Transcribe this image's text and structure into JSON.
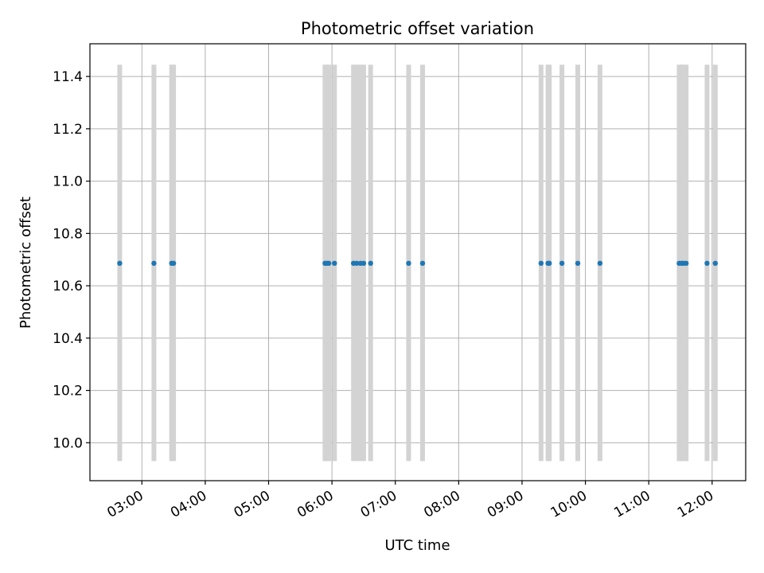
{
  "chart_data": {
    "type": "scatter",
    "title": "Photometric offset variation",
    "xlabel": "UTC time",
    "ylabel": "Photometric offset",
    "x_unit": "hours (UTC)",
    "xlim": [
      2.18,
      12.53
    ],
    "ylim": [
      9.855,
      11.525
    ],
    "x_ticks": [
      {
        "value": 3,
        "label": "03:00"
      },
      {
        "value": 4,
        "label": "04:00"
      },
      {
        "value": 5,
        "label": "05:00"
      },
      {
        "value": 6,
        "label": "06:00"
      },
      {
        "value": 7,
        "label": "07:00"
      },
      {
        "value": 8,
        "label": "08:00"
      },
      {
        "value": 9,
        "label": "09:00"
      },
      {
        "value": 10,
        "label": "10:00"
      },
      {
        "value": 11,
        "label": "11:00"
      },
      {
        "value": 12,
        "label": "12:00"
      }
    ],
    "y_ticks": [
      {
        "value": 10.0,
        "label": "10.0"
      },
      {
        "value": 10.2,
        "label": "10.2"
      },
      {
        "value": 10.4,
        "label": "10.4"
      },
      {
        "value": 10.6,
        "label": "10.6"
      },
      {
        "value": 10.8,
        "label": "10.8"
      },
      {
        "value": 11.0,
        "label": "11.0"
      },
      {
        "value": 11.2,
        "label": "11.2"
      },
      {
        "value": 11.4,
        "label": "11.4"
      }
    ],
    "grid": true,
    "point_color": "#1f77b4",
    "band_color": "#d3d3d3",
    "band_range": [
      9.93,
      11.445
    ],
    "points": [
      {
        "x": 2.65,
        "y": 10.686
      },
      {
        "x": 3.19,
        "y": 10.686
      },
      {
        "x": 3.47,
        "y": 10.686
      },
      {
        "x": 3.5,
        "y": 10.686
      },
      {
        "x": 5.89,
        "y": 10.686
      },
      {
        "x": 5.92,
        "y": 10.686
      },
      {
        "x": 5.95,
        "y": 10.686
      },
      {
        "x": 6.04,
        "y": 10.686
      },
      {
        "x": 6.34,
        "y": 10.686
      },
      {
        "x": 6.39,
        "y": 10.686
      },
      {
        "x": 6.45,
        "y": 10.686
      },
      {
        "x": 6.5,
        "y": 10.686
      },
      {
        "x": 6.61,
        "y": 10.686
      },
      {
        "x": 7.21,
        "y": 10.686
      },
      {
        "x": 7.43,
        "y": 10.686
      },
      {
        "x": 9.3,
        "y": 10.686
      },
      {
        "x": 9.41,
        "y": 10.686
      },
      {
        "x": 9.43,
        "y": 10.686
      },
      {
        "x": 9.63,
        "y": 10.686
      },
      {
        "x": 9.88,
        "y": 10.686
      },
      {
        "x": 10.23,
        "y": 10.686
      },
      {
        "x": 11.48,
        "y": 10.686
      },
      {
        "x": 11.52,
        "y": 10.686
      },
      {
        "x": 11.55,
        "y": 10.686
      },
      {
        "x": 11.59,
        "y": 10.686
      },
      {
        "x": 11.92,
        "y": 10.686
      },
      {
        "x": 12.05,
        "y": 10.686
      }
    ]
  }
}
